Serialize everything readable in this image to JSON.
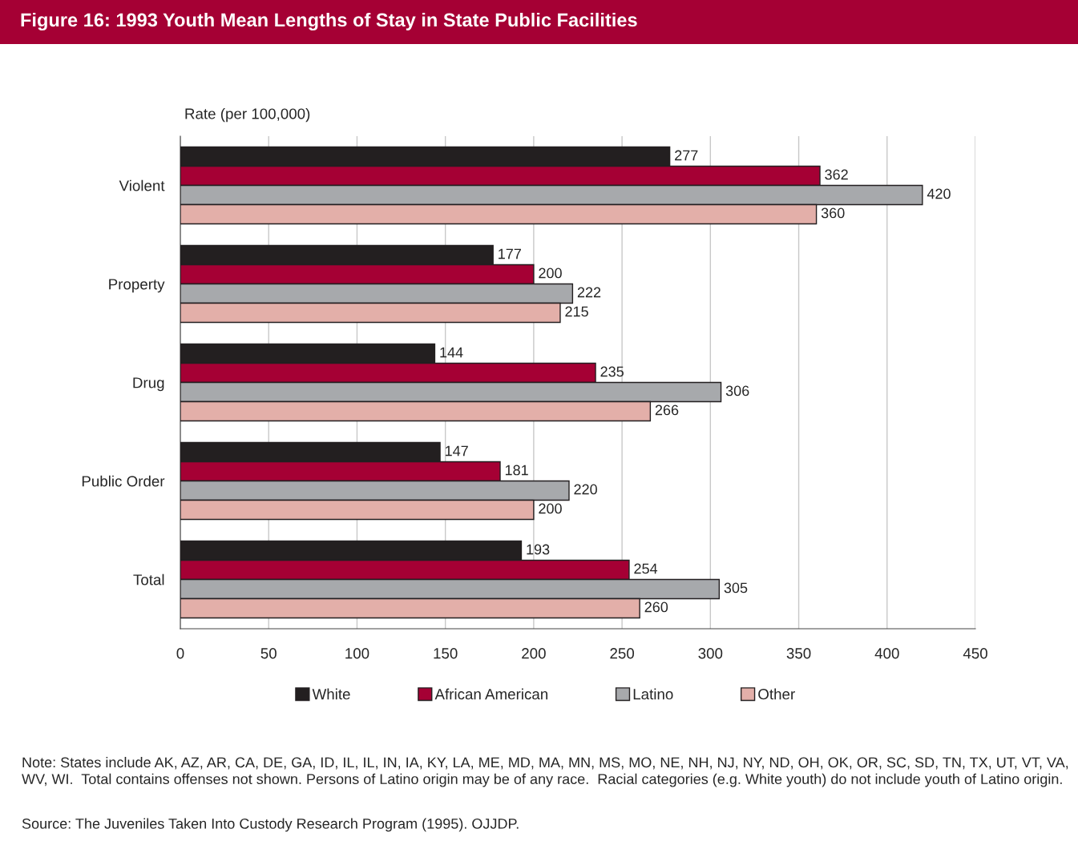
{
  "chart_data": {
    "type": "bar",
    "orientation": "horizontal",
    "title": "Figure 16: 1993 Youth Mean Lengths of Stay in State Public Facilities",
    "xlabel": "Rate (per 100,000)",
    "categories": [
      "Violent",
      "Property",
      "Drug",
      "Public Order",
      "Total"
    ],
    "series": [
      {
        "name": "White",
        "color": "#231f20",
        "values": [
          277,
          177,
          144,
          147,
          193
        ]
      },
      {
        "name": "African American",
        "color": "#a50034",
        "values": [
          362,
          200,
          235,
          181,
          254
        ]
      },
      {
        "name": "Latino",
        "color": "#a7a9ac",
        "values": [
          420,
          222,
          306,
          220,
          305
        ]
      },
      {
        "name": "Other",
        "color": "#e3afa9",
        "values": [
          360,
          215,
          266,
          200,
          260
        ]
      }
    ],
    "xlim": [
      0,
      450
    ],
    "xticks": [
      0,
      50,
      100,
      150,
      200,
      250,
      300,
      350,
      400,
      450
    ],
    "grid": "x",
    "legend": "bottom",
    "data_labels": true,
    "annotations": [
      "Note: States include AK, AZ, AR, CA, DE, GA, ID, IL, IL, IN, IA, KY, LA, ME, MD, MA, MN, MS, MO, NE, NH, NJ, NY, ND, OH, OK, OR, SC, SD, TN, TX, UT, VT, VA, WV, WI.  Total contains offenses not shown. Persons of Latino origin may be of any race.  Racial categories (e.g. White youth) do not include youth of Latino origin.",
      "Source: The Juveniles Taken Into Custody Research Program (1995). OJJDP."
    ]
  }
}
